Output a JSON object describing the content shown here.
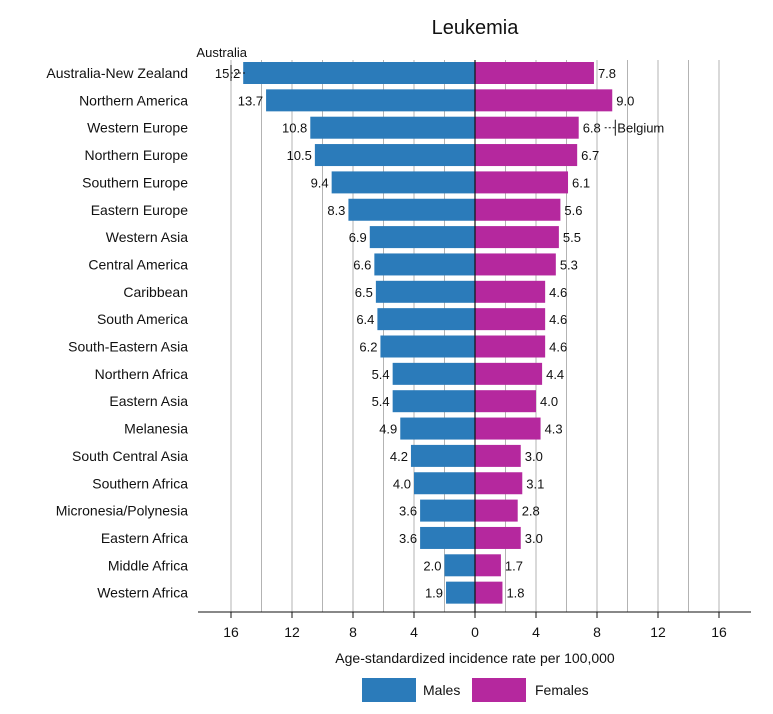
{
  "chart_data": {
    "type": "bar",
    "orientation": "horizontal-diverging",
    "title": "Leukemia",
    "xlabel": "Age-standardized incidence rate per 100,000",
    "xlim": [
      -18,
      18
    ],
    "x_ticks": [
      -16,
      -12,
      -8,
      -4,
      0,
      4,
      8,
      12,
      16
    ],
    "x_tick_labels": [
      "16",
      "12",
      "8",
      "4",
      "0",
      "4",
      "8",
      "12",
      "16"
    ],
    "grid": true,
    "legend_position": "bottom",
    "categories": [
      "Australia-New Zealand",
      "Northern America",
      "Western Europe",
      "Northern Europe",
      "Southern Europe",
      "Eastern Europe",
      "Western Asia",
      "Central America",
      "Caribbean",
      "South America",
      "South-Eastern Asia",
      "Northern Africa",
      "Eastern Asia",
      "Melanesia",
      "South Central Asia",
      "Southern Africa",
      "Micronesia/Polynesia",
      "Eastern Africa",
      "Middle Africa",
      "Western Africa"
    ],
    "series": [
      {
        "name": "Males",
        "color": "#2b7bba",
        "side": "left",
        "values": [
          15.2,
          13.7,
          10.8,
          10.5,
          9.4,
          8.3,
          6.9,
          6.6,
          6.5,
          6.4,
          6.2,
          5.4,
          5.4,
          4.9,
          4.2,
          4.0,
          3.6,
          3.6,
          2.0,
          1.9
        ],
        "labels": [
          "15.2",
          "13.7",
          "10.8",
          "10.5",
          "9.4",
          "8.3",
          "6.9",
          "6.6",
          "6.5",
          "6.4",
          "6.2",
          "5.4",
          "5.4",
          "4.9",
          "4.2",
          "4.0",
          "3.6",
          "3.6",
          "2.0",
          "1.9"
        ]
      },
      {
        "name": "Females",
        "color": "#b5289e",
        "side": "right",
        "values": [
          7.8,
          9.0,
          6.8,
          6.7,
          6.1,
          5.6,
          5.5,
          5.3,
          4.6,
          4.6,
          4.6,
          4.4,
          4.0,
          4.3,
          3.0,
          3.1,
          2.8,
          3.0,
          1.7,
          1.8
        ],
        "labels": [
          "7.8",
          "9.0",
          "6.8",
          "6.7",
          "6.1",
          "5.6",
          "5.5",
          "5.3",
          "4.6",
          "4.6",
          "4.6",
          "4.4",
          "4.0",
          "4.3",
          "3.0",
          "3.1",
          "2.8",
          "3.0",
          "1.7",
          "1.8"
        ]
      }
    ],
    "annotations": [
      {
        "text": "Australia",
        "series": "Males",
        "category": "Australia-New Zealand",
        "value": 16.0
      },
      {
        "text": "Belgium",
        "series": "Females",
        "category": "Western Europe",
        "value": 9.2
      }
    ]
  }
}
